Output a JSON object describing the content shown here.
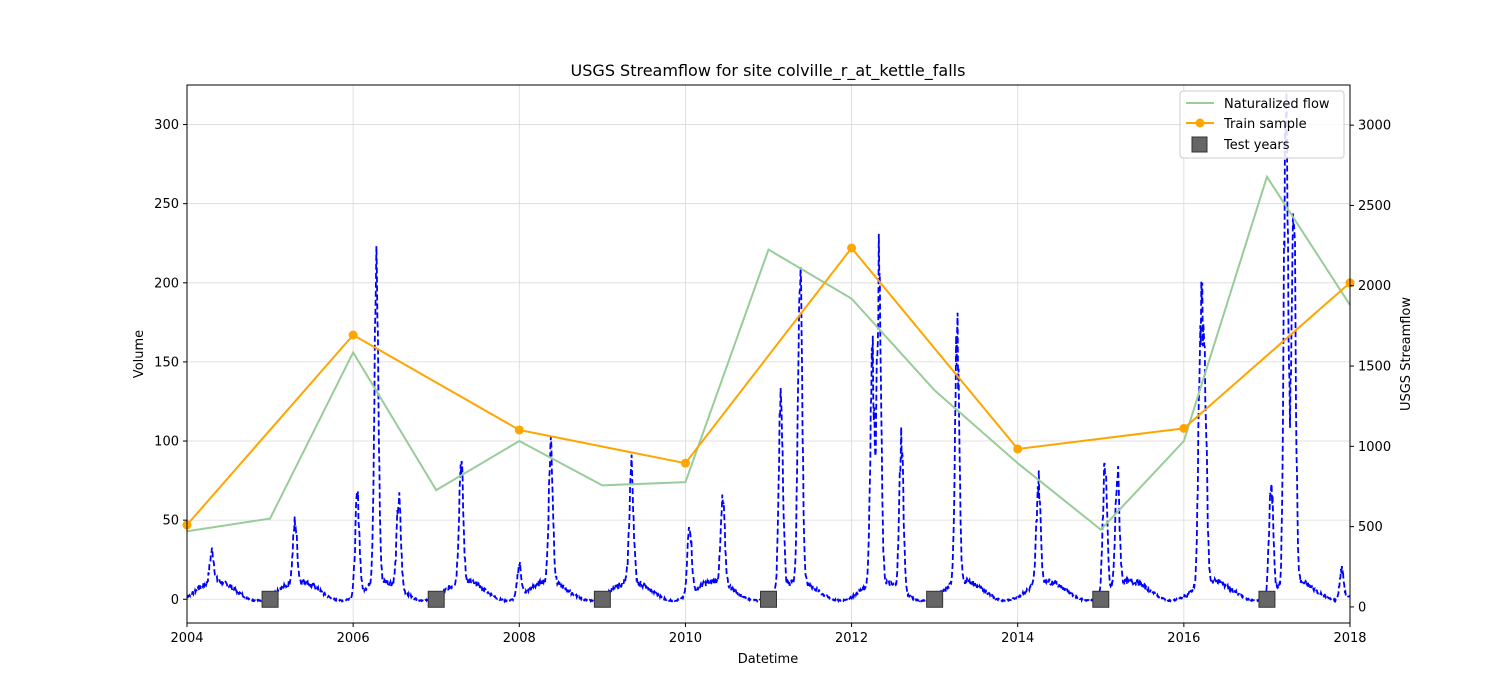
{
  "chart_data": {
    "type": "line",
    "title": "USGS Streamflow for site colville_r_at_kettle_falls",
    "xlabel": "Datetime",
    "ylabel_left": "Volume",
    "ylabel_right": "USGS Streamflow",
    "xlim": [
      2004,
      2018
    ],
    "ylim_left": [
      -15,
      325
    ],
    "ylim_right": [
      -100,
      3250
    ],
    "x_ticks": [
      "2004",
      "2006",
      "2008",
      "2010",
      "2012",
      "2014",
      "2016",
      "2018"
    ],
    "y_ticks_left": [
      "0",
      "50",
      "100",
      "150",
      "200",
      "250",
      "300"
    ],
    "y_ticks_right": [
      "0",
      "500",
      "1000",
      "1500",
      "2000",
      "2500",
      "3000"
    ],
    "grid": true,
    "legend_position": "top-right",
    "colors": {
      "naturalized": "#98cc98",
      "train": "#ffa500",
      "streamflow": "#0000ff",
      "test": "#666666"
    },
    "series": [
      {
        "name": "Naturalized flow",
        "axis": "left",
        "x": [
          2004,
          2005,
          2006,
          2007,
          2008,
          2009,
          2010,
          2011,
          2012,
          2013,
          2014,
          2015,
          2016,
          2017,
          2018
        ],
        "y": [
          43,
          51,
          156,
          69,
          100,
          72,
          74,
          221,
          190,
          132,
          86,
          44,
          100,
          267,
          186
        ]
      },
      {
        "name": "Train sample",
        "axis": "left",
        "x": [
          2004,
          2006,
          2008,
          2010,
          2012,
          2014,
          2016,
          2018
        ],
        "y": [
          47,
          167,
          107,
          86,
          222,
          95,
          108,
          200
        ]
      },
      {
        "name": "Test years",
        "axis": "left",
        "x": [
          2005,
          2007,
          2009,
          2011,
          2013,
          2015,
          2017
        ],
        "y": [
          0,
          0,
          0,
          0,
          0,
          0,
          0
        ]
      },
      {
        "name": "USGS Streamflow",
        "axis": "right",
        "base_flow": 100,
        "peaks": [
          {
            "x": 2004.3,
            "y": 290
          },
          {
            "x": 2005.3,
            "y": 470
          },
          {
            "x": 2006.05,
            "y": 700
          },
          {
            "x": 2006.28,
            "y": 2000
          },
          {
            "x": 2006.55,
            "y": 650
          },
          {
            "x": 2007.3,
            "y": 850
          },
          {
            "x": 2008.0,
            "y": 300
          },
          {
            "x": 2008.38,
            "y": 960
          },
          {
            "x": 2009.35,
            "y": 810
          },
          {
            "x": 2010.05,
            "y": 540
          },
          {
            "x": 2010.45,
            "y": 600
          },
          {
            "x": 2011.15,
            "y": 1300
          },
          {
            "x": 2011.38,
            "y": 2120
          },
          {
            "x": 2012.25,
            "y": 1500
          },
          {
            "x": 2012.33,
            "y": 2030
          },
          {
            "x": 2012.6,
            "y": 1050
          },
          {
            "x": 2013.27,
            "y": 1650
          },
          {
            "x": 2014.25,
            "y": 730
          },
          {
            "x": 2015.05,
            "y": 920
          },
          {
            "x": 2015.2,
            "y": 790
          },
          {
            "x": 2016.2,
            "y": 1580
          },
          {
            "x": 2016.25,
            "y": 1360
          },
          {
            "x": 2017.05,
            "y": 800
          },
          {
            "x": 2017.23,
            "y": 3130
          },
          {
            "x": 2017.32,
            "y": 2600
          },
          {
            "x": 2017.9,
            "y": 290
          }
        ]
      }
    ]
  }
}
